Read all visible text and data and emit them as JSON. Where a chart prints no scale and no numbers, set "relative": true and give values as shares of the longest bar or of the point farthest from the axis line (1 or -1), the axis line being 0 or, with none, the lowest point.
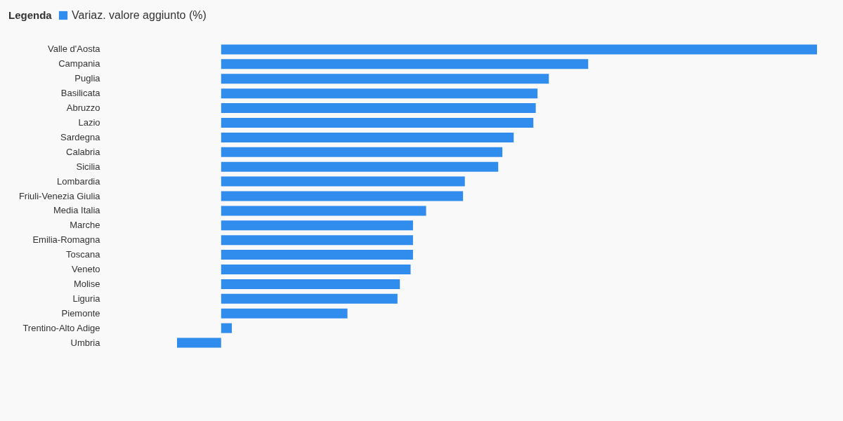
{
  "chart_data": {
    "type": "bar",
    "orientation": "horizontal",
    "relative": true,
    "legend_title": "Legenda",
    "legend": "top left",
    "categories": [
      "Valle d'Aosta",
      "Campania",
      "Puglia",
      "Basilicata",
      "Abruzzo",
      "Lazio",
      "Sardegna",
      "Calabria",
      "Sicilia",
      "Lombardia",
      "Friuli-Venezia Giulia",
      "Media Italia",
      "Marche",
      "Emilia-Romagna",
      "Toscana",
      "Veneto",
      "Molise",
      "Liguria",
      "Piemonte",
      "Trentino-Alto Adige",
      "Umbria"
    ],
    "series": [
      {
        "name": "Variaz. valore aggiunto (%)",
        "color": "#318ded",
        "values": [
          1,
          0.616,
          0.55,
          0.531,
          0.528,
          0.524,
          0.491,
          0.472,
          0.465,
          0.409,
          0.406,
          0.344,
          0.322,
          0.322,
          0.322,
          0.318,
          0.3,
          0.296,
          0.212,
          0.018,
          -0.074
        ]
      }
    ]
  }
}
